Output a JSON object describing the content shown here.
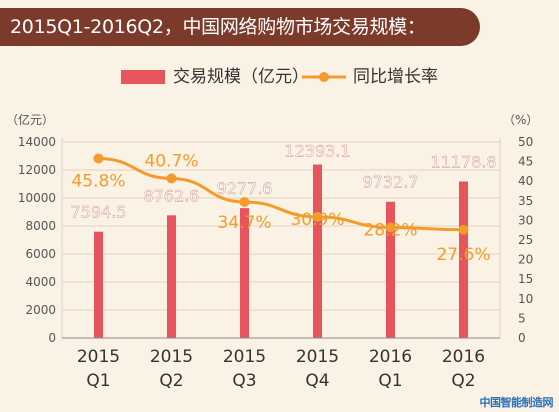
{
  "header": {
    "title": "2015Q1-2016Q2，中国网络购物市场交易规模："
  },
  "watermark": "中国智能制造网",
  "colors": {
    "bar": "#e8545b",
    "line": "#f39b2b",
    "label_line": "#f39b2b",
    "label_bar": "#ffffff",
    "axis_text": "#555555",
    "grid": "#e3d3bd",
    "header_bg": "#7b3a2a"
  },
  "chart_data": {
    "type": "bar",
    "title": "2015Q1-2016Q2，中国网络购物市场交易规模：",
    "categories": [
      [
        "2015",
        "Q1"
      ],
      [
        "2015",
        "Q2"
      ],
      [
        "2015",
        "Q3"
      ],
      [
        "2015",
        "Q4"
      ],
      [
        "2016",
        "Q1"
      ],
      [
        "2016",
        "Q2"
      ]
    ],
    "series": [
      {
        "name": "交易规模（亿元）",
        "type": "bar",
        "axis": "left",
        "values": [
          7594.5,
          8762.6,
          9277.6,
          12393.1,
          9732.7,
          11178.8
        ],
        "labels": [
          "7594.5",
          "8762.6",
          "9277.6",
          "12393.1",
          "9732.7",
          "11178.8"
        ]
      },
      {
        "name": "同比增长率",
        "type": "line",
        "axis": "right",
        "values": [
          45.8,
          40.7,
          34.7,
          30.9,
          28.2,
          27.6
        ],
        "labels": [
          "45.8%",
          "40.7%",
          "34.7%",
          "30.9%",
          "28.2%",
          "27.6%"
        ]
      }
    ],
    "y_left": {
      "unit_label": "（亿元）",
      "range": [
        0,
        14000
      ],
      "ticks": [
        "0",
        "2000",
        "4000",
        "6000",
        "8000",
        "10000",
        "12000",
        "14000"
      ]
    },
    "y_right": {
      "unit_label": "（%）",
      "range": [
        0,
        50
      ],
      "ticks": [
        "0",
        "5",
        "10",
        "15",
        "20",
        "25",
        "30",
        "35",
        "40",
        "45",
        "50"
      ]
    },
    "grid": true,
    "legend_position": "top-center"
  }
}
